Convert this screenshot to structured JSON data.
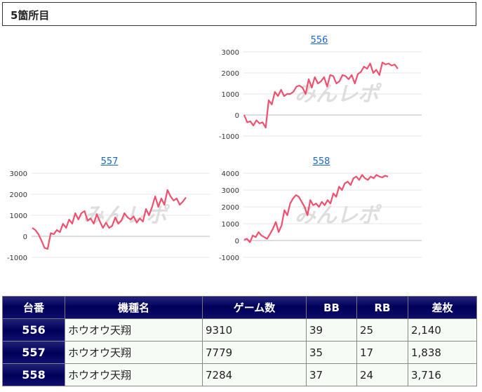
{
  "header": {
    "title": "5箇所目"
  },
  "charts": [
    {
      "label": "556",
      "watermark": "みんレポ",
      "chart_data": {
        "type": "line",
        "ylim": [
          -1000,
          3000
        ],
        "yticks": [
          "3000",
          "2000",
          "1000",
          "0",
          "-1000"
        ],
        "line_color": "#f0506e",
        "x": [
          0,
          1,
          2,
          3,
          4,
          5,
          6,
          7,
          8,
          9,
          10,
          11,
          12,
          13,
          14,
          15,
          16,
          17,
          18,
          19,
          20,
          21,
          22,
          23,
          24,
          25,
          26,
          27,
          28,
          29,
          30,
          31,
          32,
          33,
          34,
          35,
          36,
          37,
          38,
          39,
          40,
          41,
          42,
          43,
          44,
          45,
          46,
          47,
          48,
          49,
          50
        ],
        "values": [
          0,
          -350,
          -300,
          -500,
          -250,
          -400,
          -350,
          -600,
          700,
          500,
          1100,
          900,
          1200,
          900,
          1000,
          1000,
          1100,
          1350,
          1400,
          1300,
          1000,
          1700,
          1300,
          1800,
          1500,
          1600,
          1800,
          1350,
          1900,
          1850,
          1500,
          1600,
          1900,
          1850,
          1700,
          1900,
          1500,
          1950,
          2050,
          2300,
          2200,
          2450,
          2000,
          2150,
          1900,
          2500,
          2400,
          2450,
          2350,
          2400,
          2200
        ]
      }
    },
    {
      "label": "557",
      "watermark": "みんレポ",
      "chart_data": {
        "type": "line",
        "ylim": [
          -1000,
          3000
        ],
        "yticks": [
          "3000",
          "2000",
          "1000",
          "0",
          "-1000"
        ],
        "line_color": "#f0506e",
        "x": [
          0,
          1,
          2,
          3,
          4,
          5,
          6,
          7,
          8,
          9,
          10,
          11,
          12,
          13,
          14,
          15,
          16,
          17,
          18,
          19,
          20,
          21,
          22,
          23,
          24,
          25,
          26,
          27,
          28,
          29,
          30,
          31,
          32,
          33,
          34,
          35,
          36,
          37,
          38,
          39,
          40,
          41,
          42,
          43,
          44,
          45,
          46,
          47,
          48,
          49,
          50
        ],
        "values": [
          400,
          300,
          100,
          -200,
          -550,
          -600,
          150,
          100,
          300,
          200,
          600,
          400,
          800,
          600,
          1100,
          800,
          1100,
          1200,
          750,
          850,
          600,
          1050,
          700,
          400,
          650,
          400,
          500,
          900,
          600,
          750,
          1100,
          900,
          800,
          950,
          650,
          850,
          700,
          1300,
          1000,
          1400,
          1900,
          1400,
          1800,
          1500,
          2200,
          1900,
          1700,
          1800,
          1500,
          1650,
          1850
        ]
      }
    },
    {
      "label": "558",
      "watermark": "みんレポ",
      "chart_data": {
        "type": "line",
        "ylim": [
          -1000,
          4000
        ],
        "yticks": [
          "4000",
          "3000",
          "2000",
          "1000",
          "0",
          "-1000"
        ],
        "line_color": "#f0506e",
        "x": [
          0,
          1,
          2,
          3,
          4,
          5,
          6,
          7,
          8,
          9,
          10,
          11,
          12,
          13,
          14,
          15,
          16,
          17,
          18,
          19,
          20,
          21,
          22,
          23,
          24,
          25,
          26,
          27,
          28,
          29,
          30,
          31,
          32,
          33,
          34,
          35,
          36,
          37,
          38,
          39,
          40,
          41,
          42,
          43,
          44,
          45,
          46,
          47,
          48,
          49,
          50
        ],
        "values": [
          50,
          100,
          -100,
          300,
          200,
          500,
          300,
          200,
          100,
          400,
          700,
          1100,
          500,
          900,
          1800,
          1500,
          2200,
          2500,
          2700,
          2600,
          2300,
          2000,
          1500,
          2400,
          2100,
          2200,
          2000,
          2300,
          2100,
          2400,
          2200,
          2800,
          2600,
          3200,
          3000,
          3400,
          3500,
          3300,
          3700,
          3800,
          3600,
          3900,
          3700,
          3600,
          3800,
          3700,
          3900,
          3800,
          3750,
          3850,
          3800
        ]
      }
    }
  ],
  "table": {
    "headers": [
      "台番",
      "機種名",
      "ゲーム数",
      "BB",
      "RB",
      "差枚"
    ],
    "rows": [
      [
        "556",
        "ホウオウ天翔",
        "9310",
        "39",
        "25",
        "2,140"
      ],
      [
        "557",
        "ホウオウ天翔",
        "7779",
        "35",
        "17",
        "1,838"
      ],
      [
        "558",
        "ホウオウ天翔",
        "7284",
        "37",
        "24",
        "3,716"
      ]
    ]
  }
}
